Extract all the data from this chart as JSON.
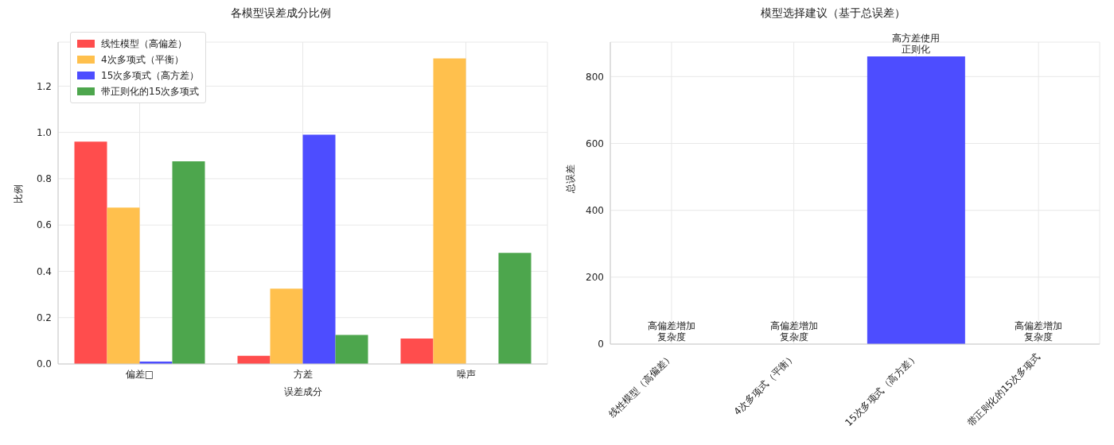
{
  "chart_data": [
    {
      "type": "bar",
      "title": "各模型误差成分比例",
      "xlabel": "误差成分",
      "ylabel": "比例",
      "categories": [
        "偏差□",
        "方差",
        "噪声"
      ],
      "series": [
        {
          "name": "线性模型（高偏差）",
          "color": "#ff4d4d",
          "values": [
            0.96,
            0.035,
            0.11
          ]
        },
        {
          "name": "4次多项式（平衡）",
          "color": "#ffc04d",
          "values": [
            0.675,
            0.325,
            1.32
          ]
        },
        {
          "name": "15次多项式（高方差）",
          "color": "#4d4dff",
          "values": [
            0.01,
            0.99,
            0
          ]
        },
        {
          "name": "带正则化的15次多项式",
          "color": "#4da64d",
          "values": [
            0.875,
            0.125,
            0.48
          ]
        }
      ],
      "ylim": [
        0,
        1.39
      ],
      "yticks": [
        {
          "value": 0,
          "label": "0.0"
        },
        0.2,
        0.4,
        0.6,
        0.8,
        {
          "value": 1,
          "label": "1.0"
        },
        1.2
      ],
      "grid": true,
      "legend": "top left"
    },
    {
      "type": "bar",
      "title": "模型选择建议（基于总误差）",
      "ylabel": "总误差",
      "categories": [
        "线性模型（高偏差）",
        "4次多项式（平衡）",
        "15次多项式（高方差）",
        "带正则化的15次多项式"
      ],
      "values": [
        0,
        0,
        860,
        0
      ],
      "colors": [
        "#ff4d4d",
        "#ffc04d",
        "#4d4dff",
        "#4da64d"
      ],
      "ylim": [
        0,
        903
      ],
      "yticks": [
        0,
        200,
        400,
        600,
        800
      ],
      "grid": true,
      "annotations": [
        {
          "text": "高偏差增加复杂度",
          "x": "线性模型（高偏差）",
          "y": 0
        },
        {
          "text": "高偏差增加复杂度",
          "x": "4次多项式（平衡）",
          "y": 0
        },
        {
          "text": "高方差使用正则化",
          "x": "15次多项式（高方差）",
          "y": 860
        },
        {
          "text": "高偏差增加复杂度",
          "x": "带正则化的15次多项式",
          "y": 0
        }
      ]
    }
  ]
}
